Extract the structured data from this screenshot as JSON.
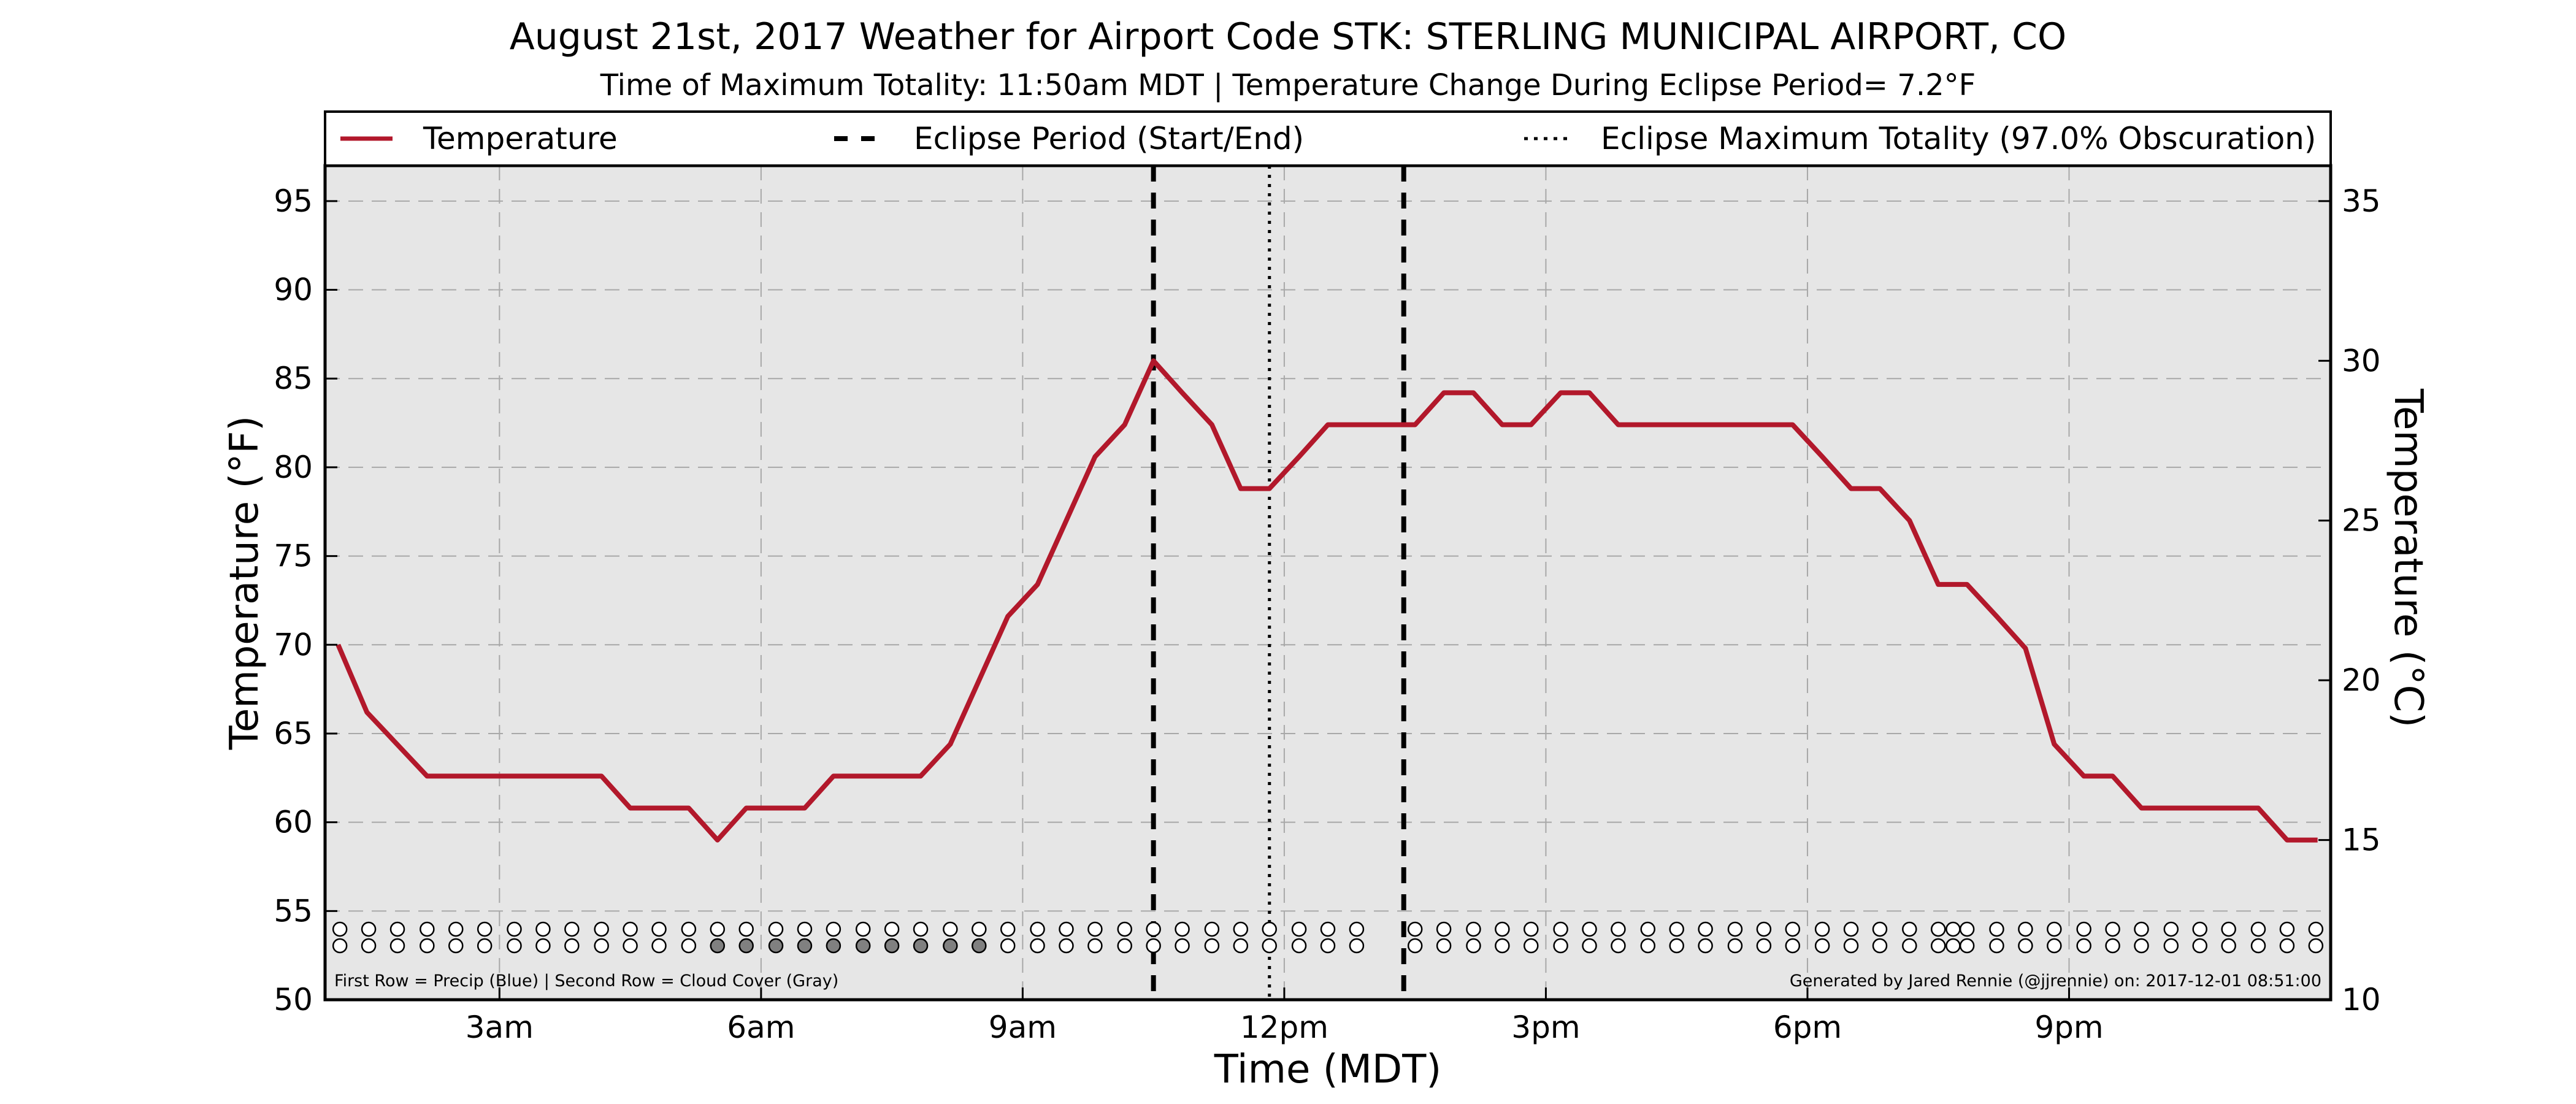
{
  "chart_data": {
    "type": "line",
    "title": "August 21st, 2017 Weather for Airport Code STK: STERLING MUNICIPAL AIRPORT, CO",
    "subtitle": "Time of Maximum Totality: 11:50am MDT | Temperature Change During Eclipse Period= 7.2°F",
    "xlabel": "Time (MDT)",
    "ylabel_left": "Temperature (°F)",
    "ylabel_right": "Temperature (°C)",
    "x_unit": "hours after midnight MDT",
    "xlim": [
      1.0,
      24.0
    ],
    "ylim": [
      50,
      97
    ],
    "ylim_celsius": [
      10,
      35.56
    ],
    "x_ticks": [
      {
        "x": 3,
        "label": "3am"
      },
      {
        "x": 6,
        "label": "6am"
      },
      {
        "x": 9,
        "label": "9am"
      },
      {
        "x": 12,
        "label": "12pm"
      },
      {
        "x": 15,
        "label": "3pm"
      },
      {
        "x": 18,
        "label": "6pm"
      },
      {
        "x": 21,
        "label": "9pm"
      }
    ],
    "y_ticks": [
      50,
      55,
      60,
      65,
      70,
      75,
      80,
      85,
      90,
      95
    ],
    "y_ticks_celsius": [
      10,
      15,
      20,
      25,
      30,
      35
    ],
    "grid": true,
    "legend": {
      "placement": "top (above plot)",
      "items": [
        {
          "label": "Temperature",
          "style": "solid",
          "color": "#b2182b"
        },
        {
          "label": "Eclipse Period (Start/End)",
          "style": "dashed",
          "color": "#000000"
        },
        {
          "label": "Eclipse Maximum Totality (97.0% Obscuration)",
          "style": "dotted",
          "color": "#000000"
        }
      ]
    },
    "series": [
      {
        "name": "Temperature",
        "color": "#b2182b",
        "x": [
          1.15,
          1.48,
          2.17,
          3.17,
          4.17,
          4.5,
          5.17,
          5.5,
          5.83,
          6.17,
          6.5,
          6.83,
          7.17,
          7.5,
          7.83,
          8.17,
          8.5,
          8.83,
          9.17,
          9.5,
          9.83,
          10.17,
          10.5,
          10.83,
          11.17,
          11.5,
          11.83,
          12.17,
          12.5,
          12.83,
          13.17,
          13.5,
          13.83,
          14.17,
          14.5,
          14.83,
          15.17,
          15.5,
          15.83,
          16.17,
          16.5,
          16.83,
          17.17,
          17.5,
          17.83,
          18.17,
          18.5,
          18.83,
          19.17,
          19.5,
          19.83,
          20.17,
          20.5,
          20.83,
          21.17,
          21.5,
          21.83,
          22.17,
          22.5,
          22.83,
          23.17,
          23.5,
          23.85
        ],
        "values": [
          70,
          66.2,
          62.6,
          62.6,
          62.6,
          60.8,
          60.8,
          59,
          60.8,
          60.8,
          60.8,
          62.6,
          62.6,
          62.6,
          62.6,
          64.4,
          68,
          71.6,
          73.4,
          77,
          80.6,
          82.4,
          86,
          84.2,
          82.4,
          78.8,
          78.8,
          80.6,
          82.4,
          82.4,
          82.4,
          82.4,
          84.2,
          84.2,
          82.4,
          82.4,
          84.2,
          84.2,
          82.4,
          82.4,
          82.4,
          82.4,
          82.4,
          82.4,
          82.4,
          80.6,
          78.8,
          78.8,
          77,
          73.4,
          73.4,
          71.6,
          69.8,
          64.4,
          62.6,
          62.6,
          60.8,
          60.8,
          60.8,
          60.8,
          60.8,
          59,
          59
        ]
      }
    ],
    "eclipse_start": 10.5,
    "eclipse_end": 13.37,
    "eclipse_max": 11.83,
    "obs_times": [
      1.17,
      1.5,
      1.83,
      2.17,
      2.5,
      2.83,
      3.17,
      3.5,
      3.83,
      4.17,
      4.5,
      4.83,
      5.17,
      5.5,
      5.83,
      6.17,
      6.5,
      6.83,
      7.17,
      7.5,
      7.83,
      8.17,
      8.5,
      8.83,
      9.17,
      9.5,
      9.83,
      10.17,
      10.5,
      10.83,
      11.17,
      11.5,
      11.83,
      12.17,
      12.5,
      12.83,
      13.5,
      13.83,
      14.17,
      14.5,
      14.83,
      15.17,
      15.5,
      15.83,
      16.17,
      16.5,
      16.83,
      17.17,
      17.5,
      17.83,
      18.17,
      18.5,
      18.83,
      19.17,
      19.5,
      19.67,
      19.83,
      20.17,
      20.5,
      20.83,
      21.17,
      21.5,
      21.83,
      22.17,
      22.5,
      22.83,
      23.17,
      23.5,
      23.83
    ],
    "cloud_gray_times": [
      5.5,
      5.83,
      6.17,
      6.5,
      6.83,
      7.17,
      7.5,
      7.83,
      8.17,
      8.5
    ],
    "precip_blue_times": []
  },
  "footnote_left": "First Row = Precip (Blue) | Second Row = Cloud Cover (Gray)",
  "footnote_right": "Generated by Jared Rennie (@jjrennie) on: 2017-12-01 08:51:00"
}
